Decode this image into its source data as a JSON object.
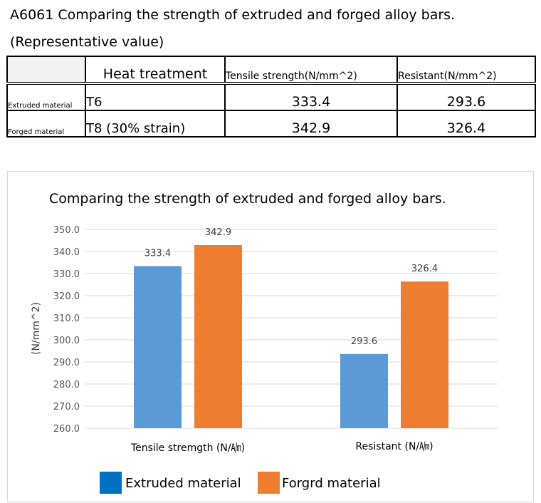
{
  "heading": {
    "line1": "A6061 Comparing the strength of extruded and forged alloy bars.",
    "line2": "(Representative value)"
  },
  "table": {
    "headers": [
      "",
      "Heat treatment",
      "Tensile strength(N/mm^2)",
      "Resistant(N/mm^2)"
    ],
    "rows": [
      {
        "label": "Extruded material",
        "treatment": "T6",
        "tensile": "333.4",
        "resistant": "293.6"
      },
      {
        "label": "Forged material",
        "treatment": "T8 (30% strain)",
        "tensile": "342.9",
        "resistant": "326.4"
      }
    ]
  },
  "colors": {
    "extruded": "#5b9bd5",
    "forged": "#ed7d31",
    "extruded_legend": "#0070c0",
    "gridline": "#d9d9d9"
  },
  "chart_data": {
    "type": "bar",
    "title": "Comparing the strength of extruded and forged alloy bars.",
    "categories": [
      "Tensile stremgth (N/㏟)",
      "Resistant (N/㏟)"
    ],
    "series": [
      {
        "name": "Extruded material",
        "values": [
          333.4,
          293.6
        ]
      },
      {
        "name": "Forgrd material",
        "values": [
          342.9,
          326.4
        ]
      }
    ],
    "ylabel": "(N/mm^2)",
    "xlabel": "",
    "ylim": [
      260,
      350
    ],
    "ytick_step": 10,
    "ytick_labels": [
      "260.0",
      "270.0",
      "280.0",
      "290.0",
      "300.0",
      "310.0",
      "320.0",
      "330.0",
      "340.0",
      "350.0"
    ],
    "data_labels": [
      [
        "333.4",
        "293.6"
      ],
      [
        "342.9",
        "326.4"
      ]
    ],
    "grid": true,
    "legend": "bottom"
  }
}
